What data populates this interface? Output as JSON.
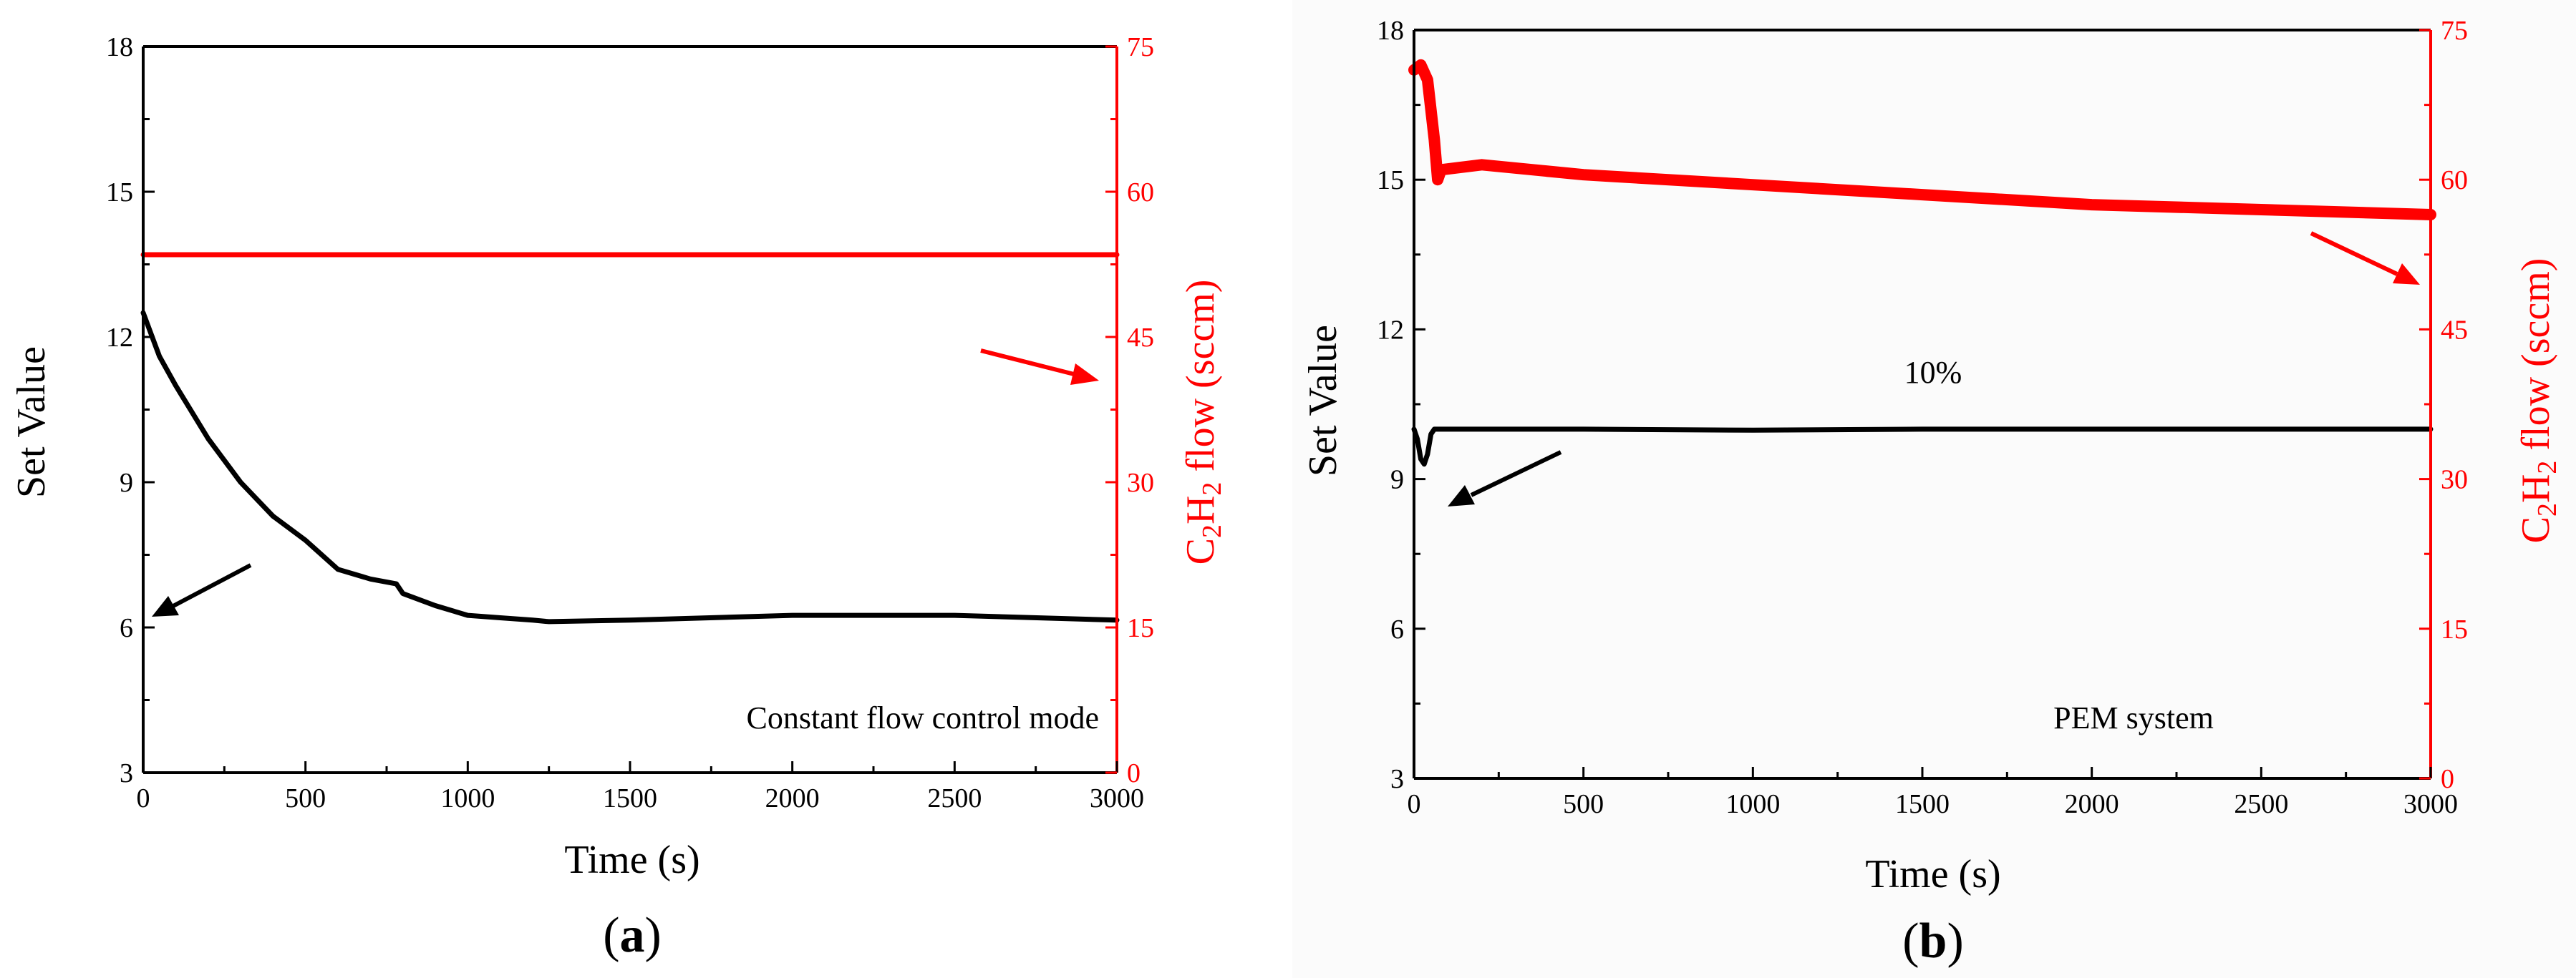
{
  "colors": {
    "left_series": "#000000",
    "right_series": "#ff0000",
    "axis": "#000000",
    "right_axis": "#ff0000"
  },
  "chart_data": [
    {
      "type": "line",
      "panel_label": "a",
      "xlabel": "Time (s)",
      "ylabel_left": "Set Value",
      "ylabel_right": "C2H2 flow (sccm)",
      "xlim": [
        0,
        3000
      ],
      "ylim_left": [
        3,
        18
      ],
      "ylim_right": [
        0,
        75
      ],
      "xticks": [
        "0",
        "500",
        "1000",
        "1500",
        "2000",
        "2500",
        "3000"
      ],
      "yticks_left": [
        "3",
        "6",
        "9",
        "12",
        "15",
        "18"
      ],
      "yticks_right": [
        "0",
        "15",
        "30",
        "45",
        "60",
        "75"
      ],
      "annotation": "Constant flow control mode",
      "series": [
        {
          "name": "Set Value",
          "axis": "left",
          "color": "#000000",
          "x": [
            0,
            50,
            100,
            200,
            300,
            400,
            500,
            600,
            700,
            780,
            800,
            900,
            1000,
            1100,
            1200,
            1250,
            1500,
            2000,
            2500,
            3000
          ],
          "y": [
            12.5,
            11.6,
            11.0,
            9.9,
            9.0,
            8.3,
            7.8,
            7.2,
            7.0,
            6.9,
            6.7,
            6.45,
            6.25,
            6.2,
            6.15,
            6.12,
            6.15,
            6.25,
            6.25,
            6.15
          ]
        },
        {
          "name": "C2H2 flow",
          "axis": "right",
          "color": "#ff0000",
          "x": [
            0,
            3000
          ],
          "y": [
            53.5,
            53.5
          ]
        }
      ]
    },
    {
      "type": "line",
      "panel_label": "b",
      "xlabel": "Time (s)",
      "ylabel_left": "Set Value",
      "ylabel_right": "C2H2 flow (sccm)",
      "xlim": [
        0,
        3000
      ],
      "ylim_left": [
        3,
        18
      ],
      "ylim_right": [
        0,
        75
      ],
      "xticks": [
        "0",
        "500",
        "1000",
        "1500",
        "2000",
        "2500",
        "3000"
      ],
      "yticks_left": [
        "3",
        "6",
        "9",
        "12",
        "15",
        "18"
      ],
      "yticks_right": [
        "0",
        "15",
        "30",
        "45",
        "60",
        "75"
      ],
      "annotation": "PEM system",
      "percent_label": "10%",
      "series": [
        {
          "name": "Set Value",
          "axis": "left",
          "color": "#000000",
          "x": [
            0,
            10,
            20,
            30,
            40,
            50,
            60,
            100,
            500,
            1000,
            1500,
            2000,
            2500,
            3000
          ],
          "y": [
            10.0,
            9.8,
            9.4,
            9.3,
            9.5,
            9.9,
            10.0,
            10.0,
            10.0,
            9.98,
            10.0,
            10.0,
            10.0,
            10.0
          ]
        },
        {
          "name": "C2H2 flow",
          "axis": "right",
          "color": "#ff0000",
          "x": [
            0,
            20,
            40,
            60,
            70,
            80,
            200,
            500,
            1000,
            1500,
            2000,
            2500,
            3000
          ],
          "y": [
            71,
            71.5,
            70,
            64,
            60,
            61,
            61.5,
            60.5,
            59.5,
            58.5,
            57.5,
            57,
            56.5
          ]
        }
      ]
    }
  ]
}
